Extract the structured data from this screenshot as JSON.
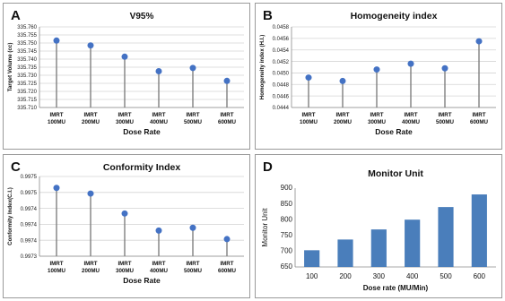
{
  "chart_data": [
    {
      "id": "A",
      "type": "lollipop",
      "panel_letter": "A",
      "title": "V95%",
      "xlabel": "Dose Rate",
      "ylabel": "Target Volume (cc)",
      "categories": [
        [
          "IMRT",
          "100MU"
        ],
        [
          "IMRT",
          "200MU"
        ],
        [
          "IMRT",
          "300MU"
        ],
        [
          "IMRT",
          "400MU"
        ],
        [
          "IMRT",
          "500MU"
        ],
        [
          "IMRT",
          "600MU"
        ]
      ],
      "values": [
        335.7515,
        335.7485,
        335.7415,
        335.7325,
        335.7345,
        335.7265
      ],
      "ylim": [
        335.71,
        335.76
      ],
      "yticks": [
        "335.710",
        "335.715",
        "335.720",
        "335.725",
        "335.730",
        "335.735",
        "335.740",
        "335.745",
        "335.750",
        "335.755",
        "335.760"
      ],
      "grid": true,
      "color": "#4472C4"
    },
    {
      "id": "B",
      "type": "lollipop",
      "panel_letter": "B",
      "title": "Homogeneity index",
      "xlabel": "Dose Rate",
      "ylabel": "Homogeneity index (H.I.)",
      "categories": [
        [
          "IMRT",
          "100MU"
        ],
        [
          "IMRT",
          "200MU"
        ],
        [
          "IMRT",
          "300MU"
        ],
        [
          "IMRT",
          "400MU"
        ],
        [
          "IMRT",
          "500MU"
        ],
        [
          "IMRT",
          "600MU"
        ]
      ],
      "values": [
        0.04492,
        0.04486,
        0.04506,
        0.04516,
        0.04508,
        0.04555
      ],
      "ylim": [
        0.0444,
        0.0458
      ],
      "yticks": [
        "0.0444",
        "0.0446",
        "0.0448",
        "0.0450",
        "0.0452",
        "0.0454",
        "0.0456",
        "0.0458"
      ],
      "grid": true,
      "color": "#4472C4"
    },
    {
      "id": "C",
      "type": "lollipop",
      "panel_letter": "C",
      "title": "Conformity Index",
      "xlabel": "Dose Rate",
      "ylabel": "Conformity Index(C.I.)",
      "categories": [
        [
          "IMRT",
          "100MU"
        ],
        [
          "IMRT",
          "200MU"
        ],
        [
          "IMRT",
          "300MU"
        ],
        [
          "IMRT",
          "400MU"
        ],
        [
          "IMRT",
          "500MU"
        ],
        [
          "IMRT",
          "600MU"
        ]
      ],
      "values": [
        0.99752,
        0.9975,
        0.99743,
        0.99737,
        0.99738,
        0.99734
      ],
      "ylim": [
        0.99728,
        0.99756
      ],
      "yticks": [
        "0.9973",
        "0.9974",
        "0.9974",
        "0.9974",
        "0.9975",
        "0.9975"
      ],
      "grid": true,
      "color": "#4472C4"
    },
    {
      "id": "D",
      "type": "bar",
      "panel_letter": "D",
      "title": "Monitor Unit",
      "xlabel": "Dose rate (MU/Min)",
      "ylabel": "Monitor Unit",
      "categories": [
        "100",
        "200",
        "300",
        "400",
        "500",
        "600"
      ],
      "values": [
        703,
        737,
        769,
        800,
        840,
        880
      ],
      "ylim": [
        650,
        900
      ],
      "yticks": [
        "650",
        "700",
        "750",
        "800",
        "850",
        "900"
      ],
      "grid": false,
      "color": "#4A7EBB"
    }
  ]
}
